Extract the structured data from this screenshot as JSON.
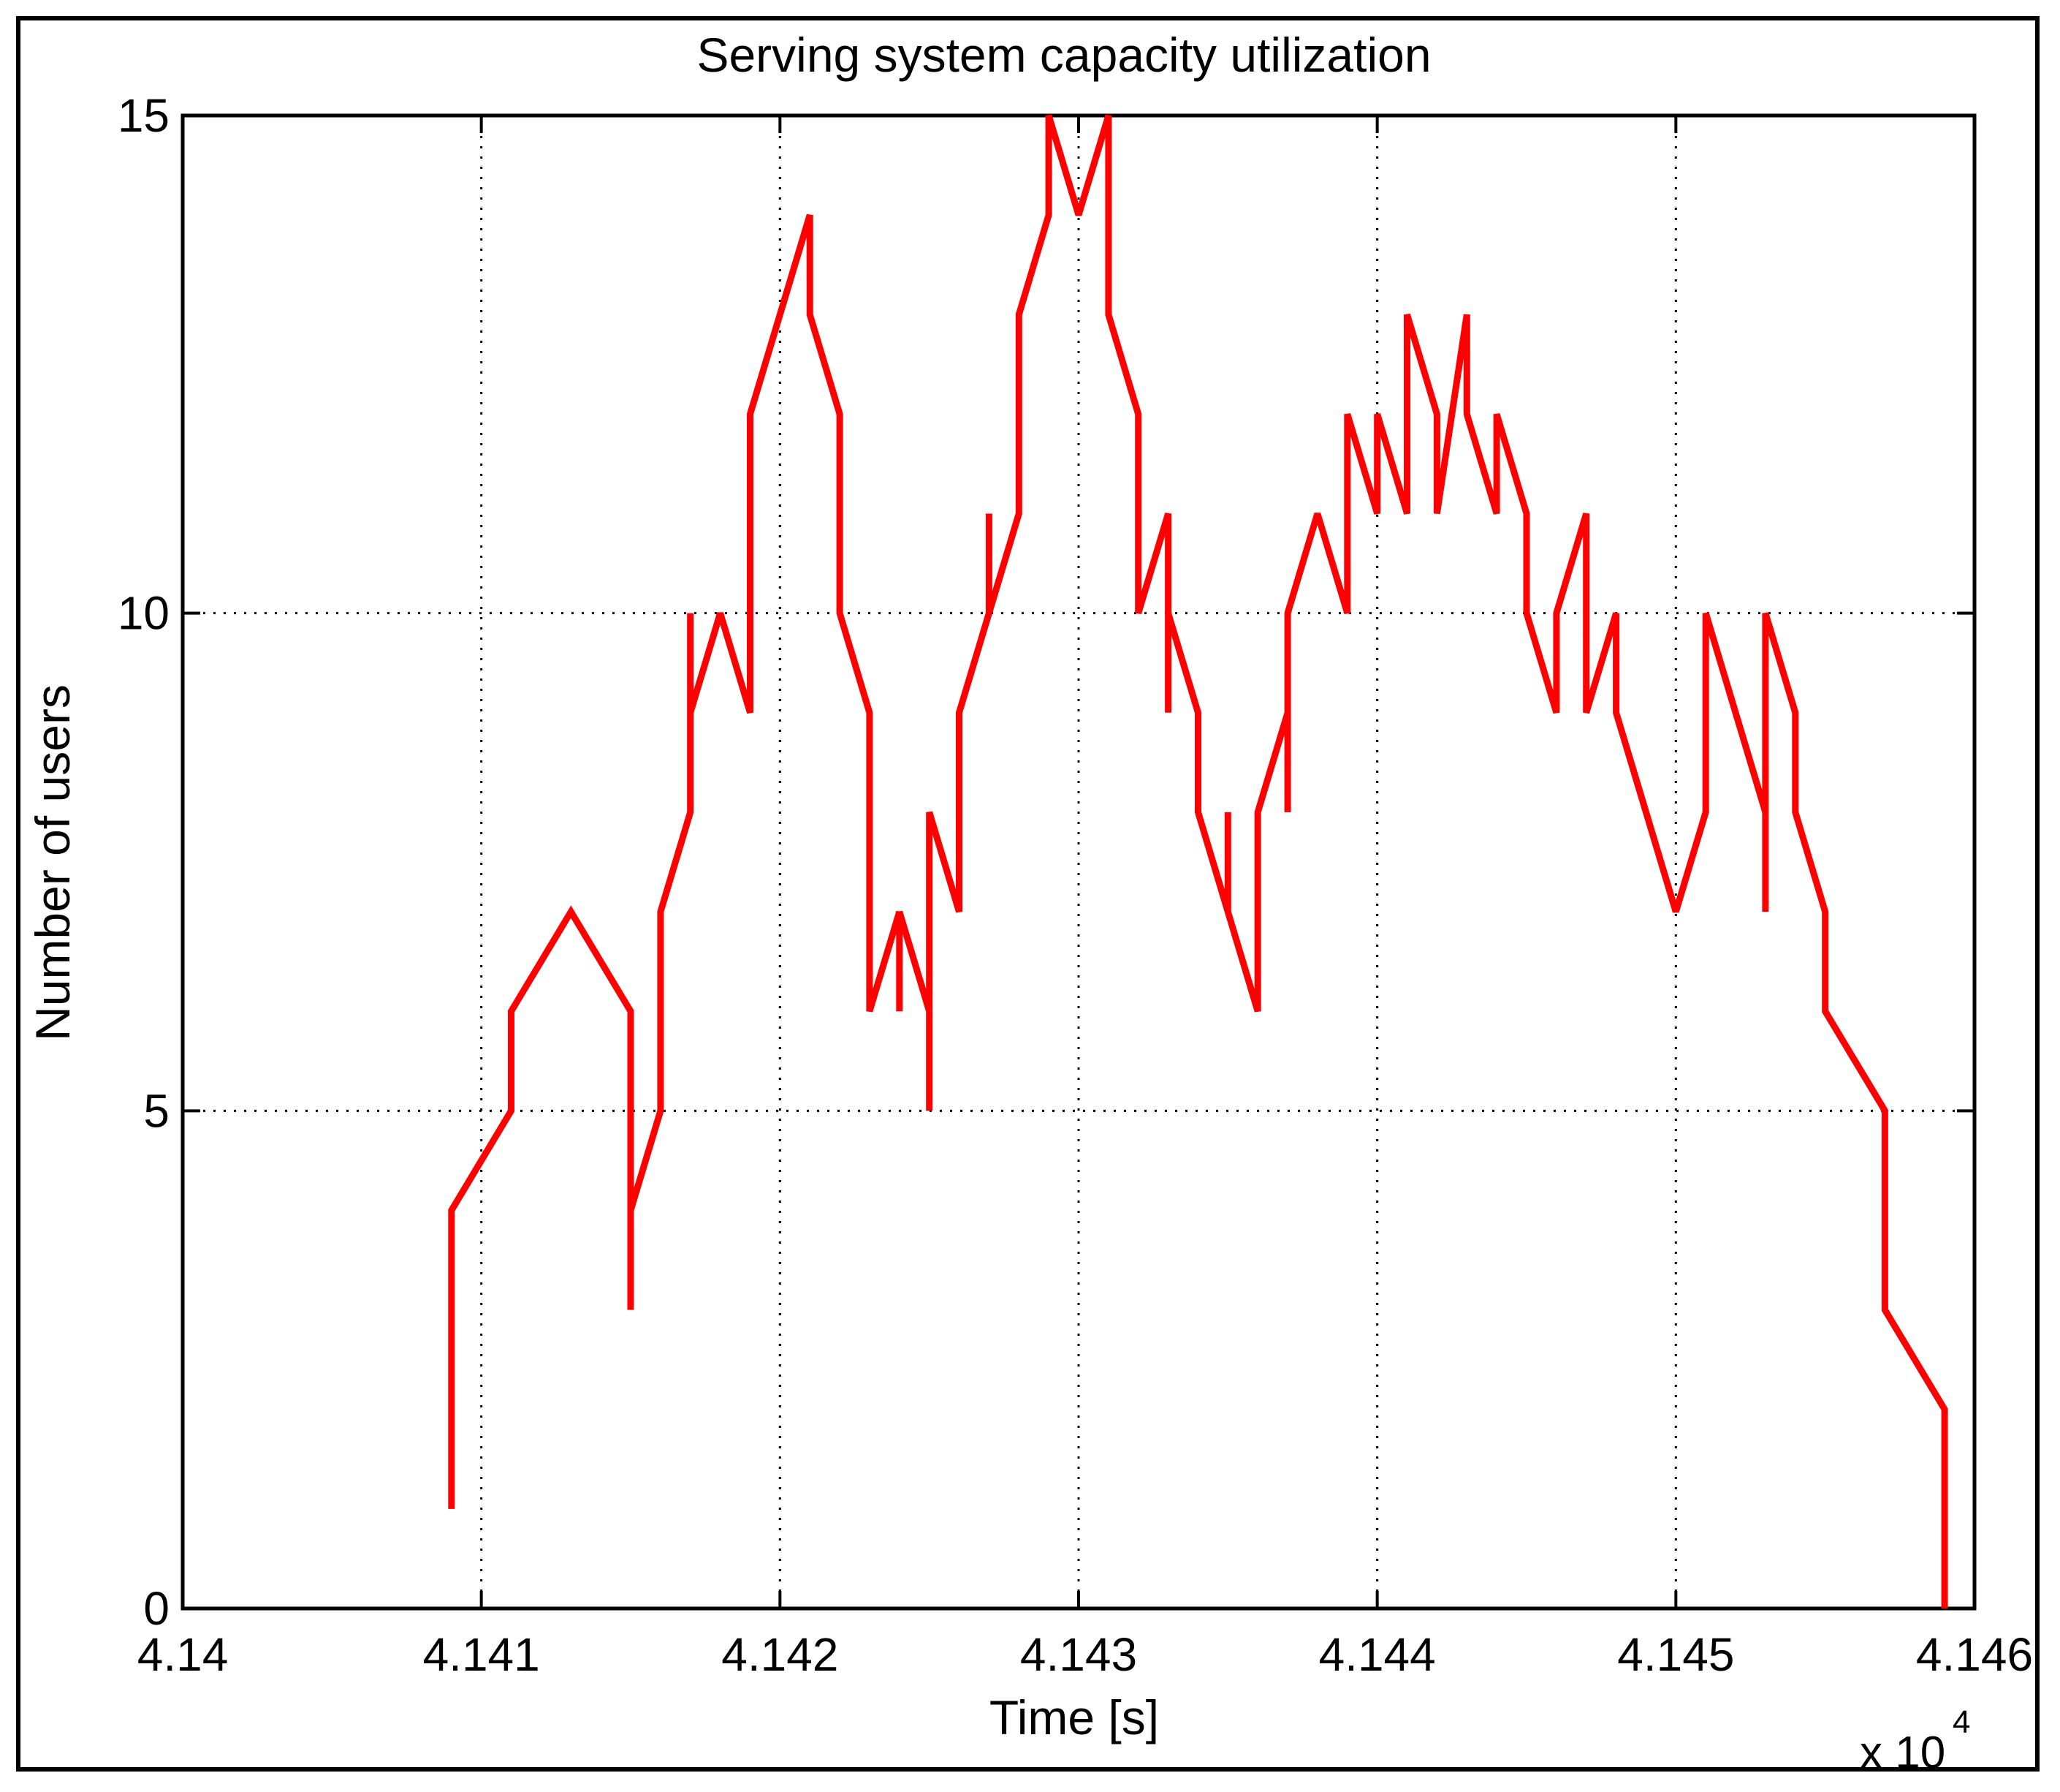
{
  "chart_data": {
    "type": "line",
    "title": "Serving system capacity utilization",
    "xlabel": "Time [s]",
    "ylabel": "Number of users",
    "x_multiplier_label": "x 10",
    "x_multiplier_exponent": "4",
    "xlim": [
      4.14,
      4.146
    ],
    "ylim": [
      0,
      15
    ],
    "x_ticks": [
      4.14,
      4.141,
      4.142,
      4.143,
      4.144,
      4.145,
      4.146
    ],
    "x_tick_labels": [
      "4.14",
      "4.141",
      "4.142",
      "4.143",
      "4.144",
      "4.145",
      "4.146"
    ],
    "y_ticks": [
      0,
      5,
      10,
      15
    ],
    "y_tick_labels": [
      "0",
      "5",
      "10",
      "15"
    ],
    "grid": true,
    "line_color": "#ff0000",
    "series": [
      {
        "name": "",
        "x": [
          4.1409,
          4.1409,
          4.1411,
          4.1411,
          4.1413,
          4.1415,
          4.1415,
          4.1415,
          4.1416,
          4.1416,
          4.1417,
          4.1417,
          4.1417,
          4.1418,
          4.1419,
          4.1419,
          4.1421,
          4.1421,
          4.1422,
          4.1422,
          4.1423,
          4.1423,
          4.1424,
          4.1424,
          4.1424,
          4.1425,
          4.1425,
          4.1425,
          4.1426,
          4.1426,
          4.1427,
          4.1427,
          4.1427,
          4.1428,
          4.1428,
          4.1429,
          4.1429,
          4.143,
          4.1431,
          4.1431,
          4.1432,
          4.1432,
          4.1433,
          4.1433,
          4.1433,
          4.1434,
          4.1434,
          4.1435,
          4.1435,
          4.1435,
          4.1436,
          4.1436,
          4.1437,
          4.1437,
          4.1437,
          4.1438,
          4.1439,
          4.1439,
          4.144,
          4.144,
          4.1441,
          4.1441,
          4.1442,
          4.1442,
          4.1443,
          4.1443,
          4.1444,
          4.1444,
          4.1445,
          4.1445,
          4.1446,
          4.1446,
          4.1447,
          4.1447,
          4.1448,
          4.1448,
          4.1449,
          4.1449,
          4.145,
          4.1451,
          4.1451,
          4.1453,
          4.1453,
          4.1453,
          4.1454,
          4.1454,
          4.1455,
          4.1455,
          4.1457,
          4.1457,
          4.1459,
          4.1459
        ],
        "y": [
          1,
          4,
          5,
          6,
          7,
          6,
          3,
          4,
          5,
          7,
          8,
          10,
          9,
          10,
          9,
          12,
          14,
          13,
          12,
          10,
          9,
          6,
          7,
          6,
          7,
          6,
          5,
          8,
          7,
          9,
          10,
          11,
          10,
          11,
          13,
          14,
          15,
          14,
          15,
          13,
          12,
          10,
          11,
          9,
          10,
          9,
          8,
          7,
          8,
          7,
          6,
          8,
          9,
          8,
          10,
          11,
          10,
          12,
          11,
          12,
          11,
          13,
          12,
          11,
          13,
          12,
          11,
          12,
          11,
          10,
          9,
          10,
          11,
          9,
          10,
          9,
          8,
          8,
          7,
          8,
          10,
          8,
          7,
          10,
          9,
          8,
          7,
          6,
          5,
          3,
          2,
          0
        ]
      }
    ]
  }
}
